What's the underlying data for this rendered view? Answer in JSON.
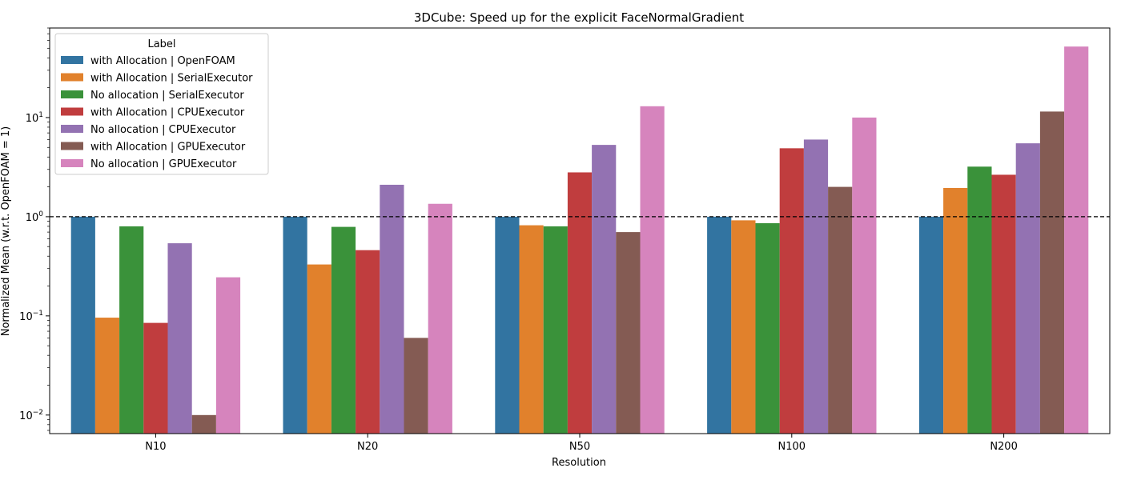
{
  "chart_data": {
    "type": "bar",
    "title": "3DCube: Speed up for the explicit FaceNormalGradient",
    "xlabel": "Resolution",
    "ylabel": "Normalized Mean (w.r.t. OpenFOAM = 1)",
    "yscale": "log",
    "ylim": [
      0.0065,
      80
    ],
    "yticks": [
      {
        "value": 0.01,
        "base": "10",
        "exp": "−2"
      },
      {
        "value": 0.1,
        "base": "10",
        "exp": "−1"
      },
      {
        "value": 1,
        "base": "10",
        "exp": "0"
      },
      {
        "value": 10,
        "base": "10",
        "exp": "1"
      }
    ],
    "reference_line": 1,
    "categories": [
      "N10",
      "N20",
      "N50",
      "N100",
      "N200"
    ],
    "legend": {
      "title": "Label",
      "placement": "top-left"
    },
    "series": [
      {
        "name": "with Allocation | OpenFOAM",
        "color": "#3274a1",
        "values": [
          1.0,
          1.0,
          1.0,
          1.0,
          1.0
        ]
      },
      {
        "name": "with Allocation | SerialExecutor",
        "color": "#e1812c",
        "values": [
          0.096,
          0.33,
          0.82,
          0.92,
          1.95
        ]
      },
      {
        "name": "No allocation | SerialExecutor",
        "color": "#3a923a",
        "values": [
          0.8,
          0.79,
          0.8,
          0.86,
          3.2
        ]
      },
      {
        "name": "with Allocation | CPUExecutor",
        "color": "#c03d3e",
        "values": [
          0.085,
          0.46,
          2.8,
          4.9,
          2.65
        ]
      },
      {
        "name": "No allocation | CPUExecutor",
        "color": "#9372b2",
        "values": [
          0.54,
          2.1,
          5.3,
          6.0,
          5.5
        ]
      },
      {
        "name": "with Allocation | GPUExecutor",
        "color": "#845b53",
        "values": [
          0.01,
          0.06,
          0.7,
          2.0,
          11.5
        ]
      },
      {
        "name": "No allocation | GPUExecutor",
        "color": "#d684bd",
        "values": [
          0.245,
          1.35,
          13.0,
          10.0,
          52.0
        ]
      }
    ]
  }
}
